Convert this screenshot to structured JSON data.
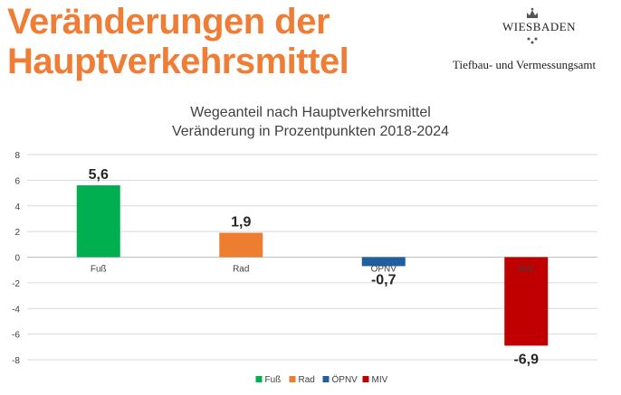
{
  "slide": {
    "title_line1": "Veränderungen der",
    "title_line2": "Hauptverkehrsmittel",
    "logo_text": "WIESBADEN",
    "department": "Tiefbau- und Vermessungsamt"
  },
  "colors": {
    "title": "#f07d35",
    "Fuß": "#00b050",
    "Rad": "#ed7d31",
    "ÖPNV": "#1f5fa0",
    "MIV": "#c00000"
  },
  "chart_data": {
    "type": "bar",
    "title": "Wegeanteil nach Hauptverkehrsmittel",
    "subtitle": "Veränderung in Prozentpunkten 2018-2024",
    "categories": [
      "Fuß",
      "Rad",
      "ÖPNV",
      "MIV"
    ],
    "values": [
      5.6,
      1.9,
      -0.7,
      -6.9
    ],
    "data_labels": [
      "5,6",
      "1,9",
      "-0,7",
      "-6,9"
    ],
    "ylim": [
      -8,
      8
    ],
    "yticks": [
      8,
      6,
      4,
      2,
      0,
      -2,
      -4,
      -6,
      -8
    ],
    "ytick_labels": [
      "8",
      "6",
      "4",
      "2",
      "0",
      "-2",
      "-4",
      "-6",
      "-8"
    ],
    "xlabel": "",
    "ylabel": "",
    "grid": true,
    "legend": "bottom-center",
    "legend_entries": [
      "Fuß",
      "Rad",
      "ÖPNV",
      "MIV"
    ]
  }
}
